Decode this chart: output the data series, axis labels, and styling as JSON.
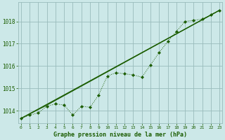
{
  "title": "Graphe pression niveau de la mer (hPa)",
  "background_color": "#cce8e8",
  "grid_color": "#99bbbb",
  "line_color": "#1a5c00",
  "xlim": [
    -0.3,
    23.3
  ],
  "ylim": [
    1013.45,
    1018.85
  ],
  "yticks": [
    1014,
    1015,
    1016,
    1017,
    1018
  ],
  "xticks": [
    0,
    1,
    2,
    3,
    4,
    5,
    6,
    7,
    8,
    9,
    10,
    11,
    12,
    13,
    14,
    15,
    16,
    17,
    18,
    19,
    20,
    21,
    22,
    23
  ],
  "hours": [
    0,
    1,
    2,
    3,
    4,
    5,
    6,
    7,
    8,
    9,
    10,
    11,
    12,
    13,
    14,
    15,
    16,
    17,
    18,
    19,
    20,
    21,
    22,
    23
  ],
  "pressure_data": [
    1013.65,
    1013.8,
    1013.9,
    1014.2,
    1014.3,
    1014.25,
    1013.8,
    1014.2,
    1014.15,
    1014.7,
    1015.55,
    1015.7,
    1015.65,
    1015.6,
    1015.5,
    1016.05,
    1016.6,
    1017.1,
    1017.55,
    1018.0,
    1018.05,
    1018.1,
    1018.3,
    1018.5
  ],
  "trend1_x": [
    0,
    3,
    23
  ],
  "trend1_y": [
    1013.65,
    1014.2,
    1018.5
  ],
  "trend2_x": [
    0,
    3,
    23
  ],
  "trend2_y": [
    1013.65,
    1014.25,
    1018.5
  ]
}
